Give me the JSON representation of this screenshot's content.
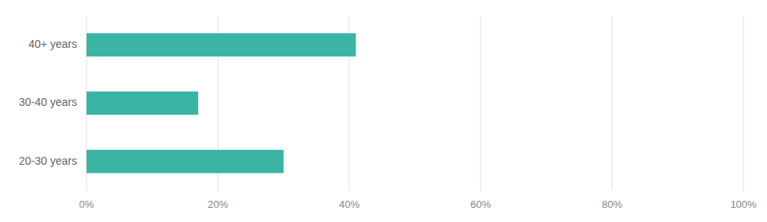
{
  "chart_data": {
    "type": "bar",
    "orientation": "horizontal",
    "categories": [
      "40+ years",
      "30-40 years",
      "20-30 years"
    ],
    "values": [
      41,
      17,
      30
    ],
    "color": "#3ab5a4",
    "xlim": [
      0,
      100
    ],
    "xticks": [
      {
        "value": 0,
        "label": "0%"
      },
      {
        "value": 20,
        "label": "20%"
      },
      {
        "value": 40,
        "label": "40%"
      },
      {
        "value": 60,
        "label": "60%"
      },
      {
        "value": 80,
        "label": "80%"
      },
      {
        "value": 100,
        "label": "100%"
      }
    ],
    "grid": true
  }
}
